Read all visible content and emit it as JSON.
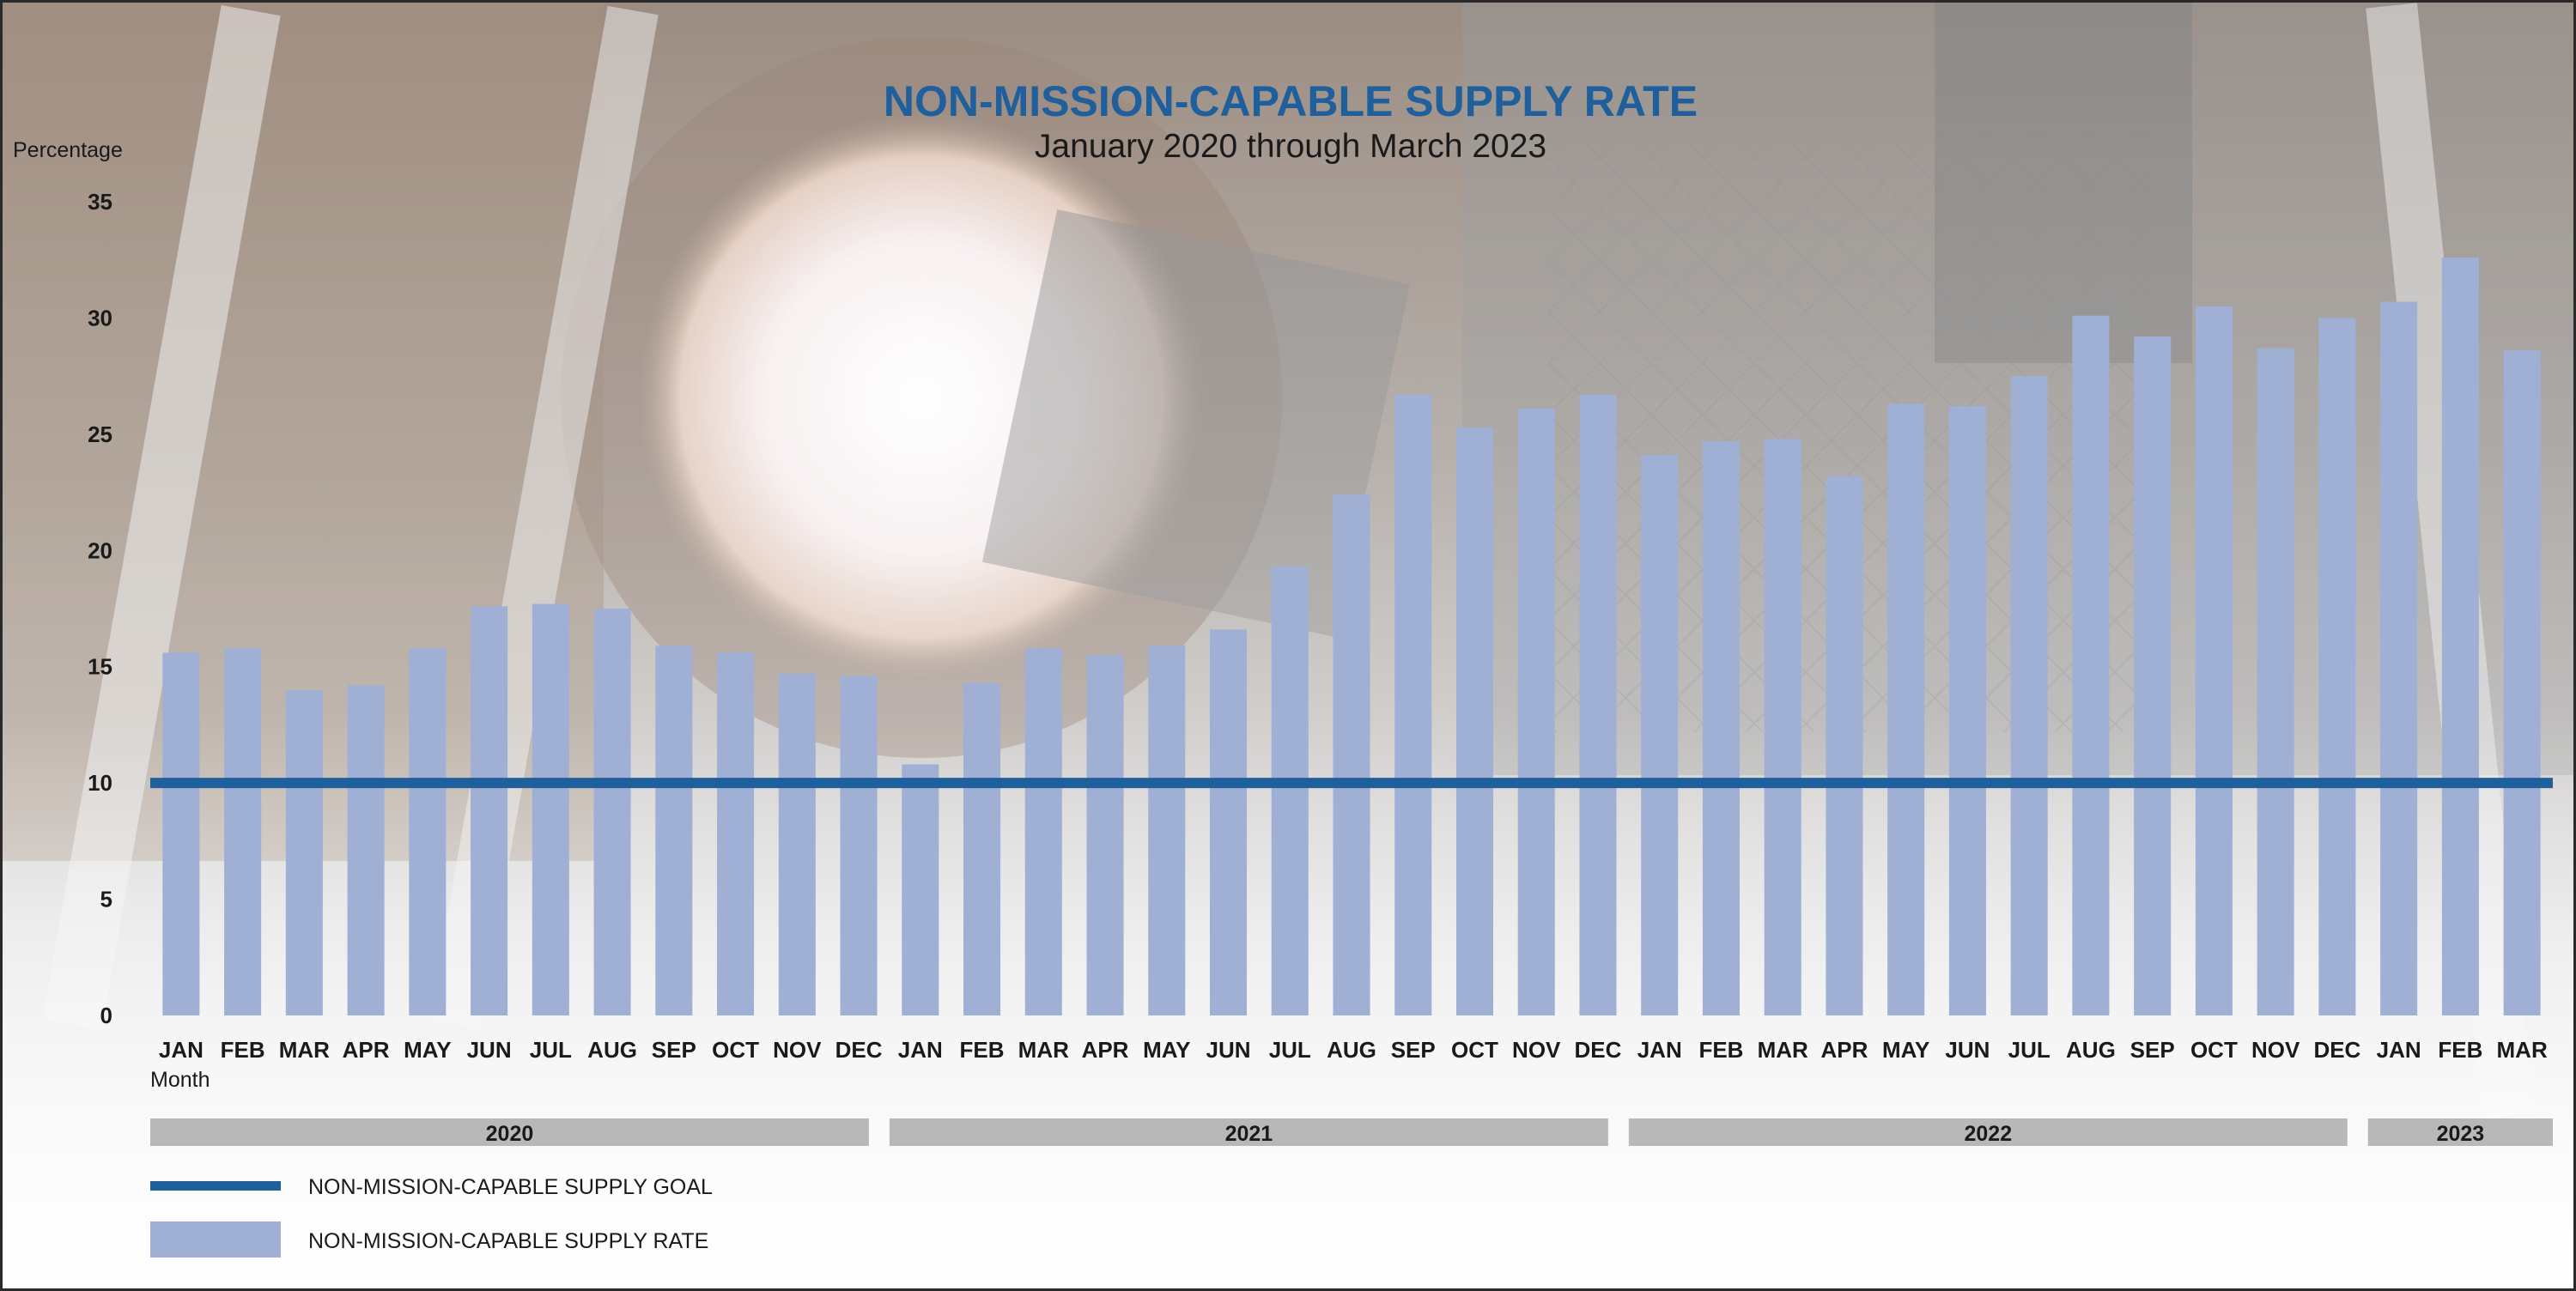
{
  "chart_data": {
    "type": "bar",
    "title": "NON-MISSION-CAPABLE SUPPLY RATE",
    "subtitle": "January 2020 through March 2023",
    "ylabel": "Percentage",
    "xlabel": "Month",
    "ylim": [
      0,
      35
    ],
    "yticks": [
      0,
      5,
      10,
      15,
      20,
      25,
      30,
      35
    ],
    "grid": false,
    "legend_placement": "bottom-left",
    "categories": [
      "JAN",
      "FEB",
      "MAR",
      "APR",
      "MAY",
      "JUN",
      "JUL",
      "AUG",
      "SEP",
      "OCT",
      "NOV",
      "DEC",
      "JAN",
      "FEB",
      "MAR",
      "APR",
      "MAY",
      "JUN",
      "JUL",
      "AUG",
      "SEP",
      "OCT",
      "NOV",
      "DEC",
      "JAN",
      "FEB",
      "MAR",
      "APR",
      "MAY",
      "JUN",
      "JUL",
      "AUG",
      "SEP",
      "OCT",
      "NOV",
      "DEC",
      "JAN",
      "FEB",
      "MAR"
    ],
    "years": [
      {
        "label": "2020",
        "start": 0,
        "end": 11
      },
      {
        "label": "2021",
        "start": 12,
        "end": 23
      },
      {
        "label": "2022",
        "start": 24,
        "end": 35
      },
      {
        "label": "2023",
        "start": 36,
        "end": 38
      }
    ],
    "series": [
      {
        "name": "NON-MISSION-CAPABLE SUPPLY RATE",
        "kind": "bar",
        "color": "#9fb0d4",
        "values": [
          15.6,
          15.8,
          14.0,
          14.2,
          15.8,
          17.6,
          17.7,
          17.5,
          15.9,
          15.6,
          14.7,
          14.6,
          10.8,
          14.3,
          15.8,
          15.5,
          15.9,
          16.6,
          19.3,
          22.4,
          26.7,
          25.3,
          26.1,
          26.7,
          24.1,
          24.7,
          24.8,
          23.2,
          26.3,
          26.2,
          27.5,
          30.1,
          29.2,
          30.5,
          28.7,
          30.0,
          30.7,
          32.6,
          28.6
        ]
      },
      {
        "name": "NON-MISSION-CAPABLE SUPPLY GOAL",
        "kind": "line",
        "color": "#1f5f9b",
        "value": 10
      }
    ]
  }
}
